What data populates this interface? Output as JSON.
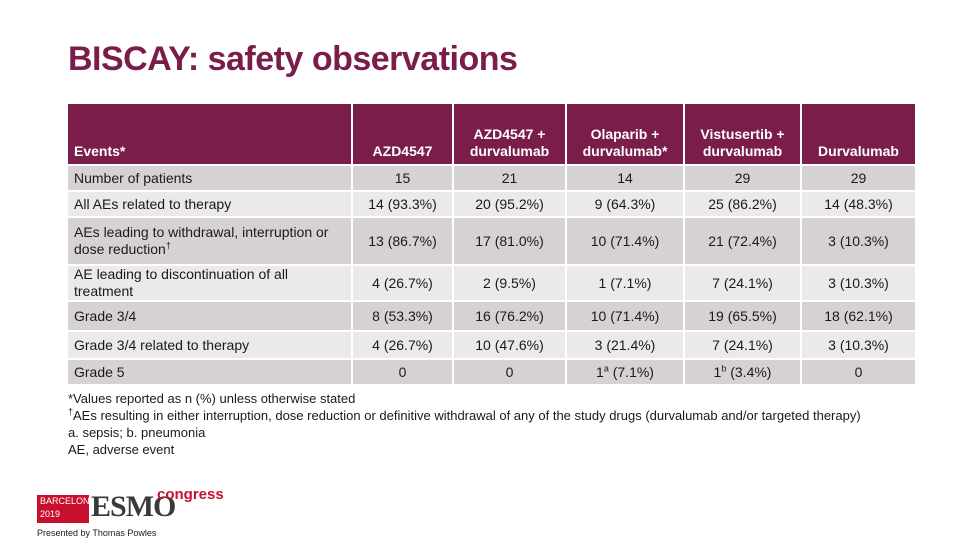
{
  "title": "BISCAY: safety observations",
  "table": {
    "headers": [
      {
        "lines": [
          "Events*"
        ]
      },
      {
        "lines": [
          "AZD4547"
        ]
      },
      {
        "lines": [
          "AZD4547 +",
          "durvalumab"
        ]
      },
      {
        "lines": [
          "Olaparib +",
          "durvalumab*"
        ]
      },
      {
        "lines": [
          "Vistusertib +",
          "durvalumab"
        ]
      },
      {
        "lines": [
          "Durvalumab"
        ]
      }
    ],
    "rows": [
      {
        "label": "Number of patients",
        "label_sup": "",
        "cells": [
          {
            "v": "15",
            "sup": "",
            "rest": ""
          },
          {
            "v": "21",
            "sup": "",
            "rest": ""
          },
          {
            "v": "14",
            "sup": "",
            "rest": ""
          },
          {
            "v": "29",
            "sup": "",
            "rest": ""
          },
          {
            "v": "29",
            "sup": "",
            "rest": ""
          }
        ]
      },
      {
        "label": "All AEs related to therapy",
        "label_sup": "",
        "cells": [
          {
            "v": "14 (93.3%)",
            "sup": "",
            "rest": ""
          },
          {
            "v": "20 (95.2%)",
            "sup": "",
            "rest": ""
          },
          {
            "v": "9 (64.3%)",
            "sup": "",
            "rest": ""
          },
          {
            "v": "25 (86.2%)",
            "sup": "",
            "rest": ""
          },
          {
            "v": "14 (48.3%)",
            "sup": "",
            "rest": ""
          }
        ]
      },
      {
        "label": "AEs leading to withdrawal, interruption or dose reduction",
        "label_sup": "†",
        "cells": [
          {
            "v": "13 (86.7%)",
            "sup": "",
            "rest": ""
          },
          {
            "v": "17 (81.0%)",
            "sup": "",
            "rest": ""
          },
          {
            "v": "10 (71.4%)",
            "sup": "",
            "rest": ""
          },
          {
            "v": "21 (72.4%)",
            "sup": "",
            "rest": ""
          },
          {
            "v": "3 (10.3%)",
            "sup": "",
            "rest": ""
          }
        ]
      },
      {
        "label": "AE leading to discontinuation of all treatment",
        "label_sup": "",
        "cells": [
          {
            "v": "4 (26.7%)",
            "sup": "",
            "rest": ""
          },
          {
            "v": "2 (9.5%)",
            "sup": "",
            "rest": ""
          },
          {
            "v": "1 (7.1%)",
            "sup": "",
            "rest": ""
          },
          {
            "v": "7 (24.1%)",
            "sup": "",
            "rest": ""
          },
          {
            "v": "3 (10.3%)",
            "sup": "",
            "rest": ""
          }
        ]
      },
      {
        "label": "Grade 3/4",
        "label_sup": "",
        "cells": [
          {
            "v": "8 (53.3%)",
            "sup": "",
            "rest": ""
          },
          {
            "v": "16 (76.2%)",
            "sup": "",
            "rest": ""
          },
          {
            "v": "10 (71.4%)",
            "sup": "",
            "rest": ""
          },
          {
            "v": "19 (65.5%)",
            "sup": "",
            "rest": ""
          },
          {
            "v": "18 (62.1%)",
            "sup": "",
            "rest": ""
          }
        ]
      },
      {
        "label": "Grade 3/4 related to therapy",
        "label_sup": "",
        "cells": [
          {
            "v": "4 (26.7%)",
            "sup": "",
            "rest": ""
          },
          {
            "v": "10 (47.6%)",
            "sup": "",
            "rest": ""
          },
          {
            "v": "3 (21.4%)",
            "sup": "",
            "rest": ""
          },
          {
            "v": "7 (24.1%)",
            "sup": "",
            "rest": ""
          },
          {
            "v": "3 (10.3%)",
            "sup": "",
            "rest": ""
          }
        ]
      },
      {
        "label": "Grade 5",
        "label_sup": "",
        "cells": [
          {
            "v": "0",
            "sup": "",
            "rest": ""
          },
          {
            "v": "0",
            "sup": "",
            "rest": ""
          },
          {
            "v": "1",
            "sup": "a",
            "rest": " (7.1%)"
          },
          {
            "v": "1",
            "sup": "b",
            "rest": " (3.4%)"
          },
          {
            "v": "0",
            "sup": "",
            "rest": ""
          }
        ]
      }
    ]
  },
  "footnotes": [
    {
      "sup": "",
      "text": "*Values reported as n (%) unless otherwise stated"
    },
    {
      "sup": "†",
      "text": "AEs resulting in either interruption, dose reduction or definitive withdrawal of any of the study drugs (durvalumab and/or targeted therapy)"
    },
    {
      "sup": "",
      "text": "a. sepsis; b. pneumonia"
    },
    {
      "sup": "",
      "text": "AE, adverse event"
    }
  ],
  "logo": {
    "city": "BARCELONA",
    "year": "2019",
    "brand": "ESMO",
    "suffix": "congress"
  },
  "presenter": "Presented by Thomas Powles",
  "colors": {
    "header_bg": "#7a1d4a",
    "title": "#7a1d4a",
    "row_odd": "#d6d2d4",
    "row_even": "#ebe9ea",
    "esmo_red": "#c8102e"
  }
}
